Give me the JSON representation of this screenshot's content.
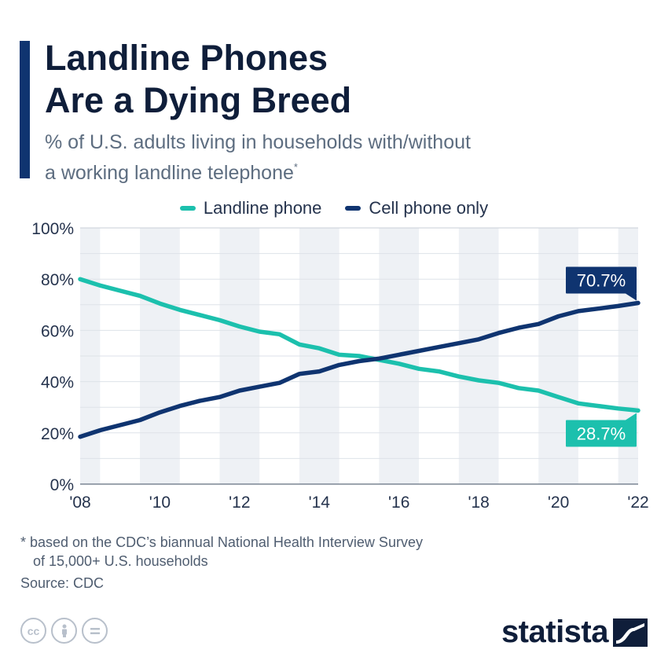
{
  "header": {
    "title_line1": "Landline Phones",
    "title_line2": "Are a Dying Breed",
    "subtitle_line1": "% of U.S. adults living in households with/without",
    "subtitle_line2": "a working landline telephone",
    "subtitle_mark": "*"
  },
  "footer": {
    "footnote_line1": "* based on the CDC’s biannual National Health Interview Survey",
    "footnote_line2": "of 15,000+ U.S. households",
    "source": "Source: CDC",
    "brand": "statista"
  },
  "icons": [
    "creative-commons-icon",
    "attribution-icon",
    "no-derivatives-icon",
    "statista-logo-icon"
  ],
  "colors": {
    "landline": "#1cc0ad",
    "cell": "#0f3470",
    "band": "#eef1f5",
    "grid": "#c9cfd7",
    "text": "#25334d"
  },
  "chart_data": {
    "type": "line",
    "title": "Landline Phones Are a Dying Breed",
    "subtitle": "% of U.S. adults living in households with/without a working landline telephone",
    "xlabel": "",
    "ylabel": "",
    "xlim": [
      2008,
      2022
    ],
    "ylim": [
      0,
      100
    ],
    "y_ticks": [
      0,
      20,
      40,
      60,
      80,
      100
    ],
    "y_tick_labels": [
      "0%",
      "20%",
      "40%",
      "60%",
      "80%",
      "100%"
    ],
    "x_ticks": [
      2008,
      2010,
      2012,
      2014,
      2016,
      2018,
      2020,
      2022
    ],
    "x_tick_labels": [
      "'08",
      "'10",
      "'12",
      "'14",
      "'16",
      "'18",
      "'20",
      "'22"
    ],
    "grid": true,
    "legend_position": "top-center",
    "x": [
      2008,
      2008.5,
      2009,
      2009.5,
      2010,
      2010.5,
      2011,
      2011.5,
      2012,
      2012.5,
      2013,
      2013.5,
      2014,
      2014.5,
      2015,
      2015.5,
      2016,
      2016.5,
      2017,
      2017.5,
      2018,
      2018.5,
      2019,
      2019.5,
      2020,
      2020.5,
      2021,
      2021.5,
      2022
    ],
    "series": [
      {
        "name": "Landline phone",
        "color": "#1cc0ad",
        "values": [
          80,
          77.5,
          75.5,
          73.5,
          70.5,
          68,
          66,
          64,
          61.5,
          59.5,
          58.5,
          54.5,
          53,
          50.5,
          50,
          48.5,
          47,
          45,
          44,
          42,
          40.5,
          39.5,
          37.5,
          36.5,
          34,
          31.5,
          30.5,
          29.5,
          28.7
        ],
        "end_label": "28.7%"
      },
      {
        "name": "Cell phone only",
        "color": "#0f3470",
        "values": [
          18.5,
          21,
          23,
          25,
          28,
          30.5,
          32.5,
          34,
          36.5,
          38,
          39.5,
          43,
          44,
          46.5,
          48,
          49,
          50.5,
          52,
          53.5,
          55,
          56.5,
          59,
          61,
          62.5,
          65.5,
          67.5,
          68.5,
          69.5,
          70.7
        ],
        "end_label": "70.7%"
      }
    ]
  }
}
